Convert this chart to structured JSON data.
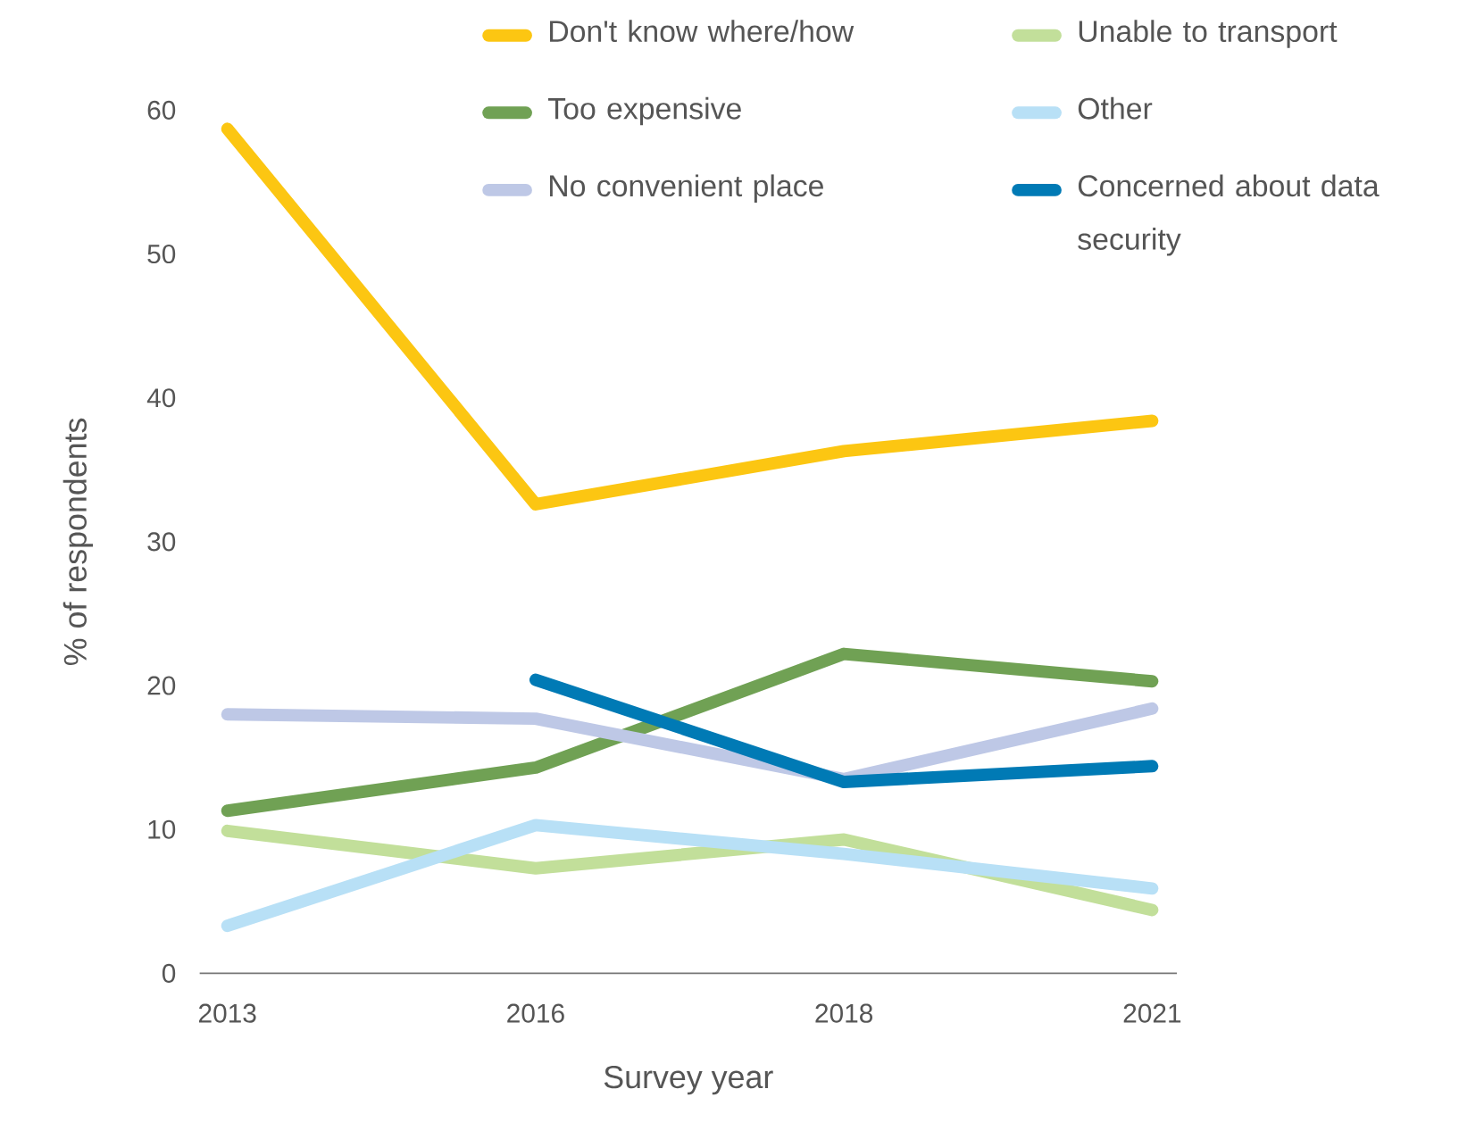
{
  "chart_data": {
    "type": "line",
    "xlabel": "Survey year",
    "ylabel": "% of respondents",
    "categories": [
      "2013",
      "2016",
      "2018",
      "2021"
    ],
    "ylim": [
      0,
      60
    ],
    "yticks": [
      0,
      10,
      20,
      30,
      40,
      50,
      60
    ],
    "legend": "top right",
    "series": [
      {
        "name": "Don't know where/how",
        "color": "#fcc612",
        "values": [
          58.7,
          32.6,
          36.3,
          38.4
        ]
      },
      {
        "name": "Unable to transport",
        "color": "#c2df9a",
        "values": [
          9.9,
          7.3,
          9.3,
          4.4
        ]
      },
      {
        "name": "Too expensive",
        "color": "#70a154",
        "values": [
          11.3,
          14.3,
          22.2,
          20.3
        ]
      },
      {
        "name": "Other",
        "color": "#b8e0f6",
        "values": [
          3.3,
          10.3,
          8.3,
          5.9
        ]
      },
      {
        "name": "No convenient place",
        "color": "#bec8e6",
        "values": [
          18.0,
          17.7,
          13.5,
          18.4
        ]
      },
      {
        "name": "Concerned about data security",
        "color": "#007ab5",
        "values": [
          null,
          20.4,
          13.3,
          14.4
        ]
      }
    ]
  }
}
